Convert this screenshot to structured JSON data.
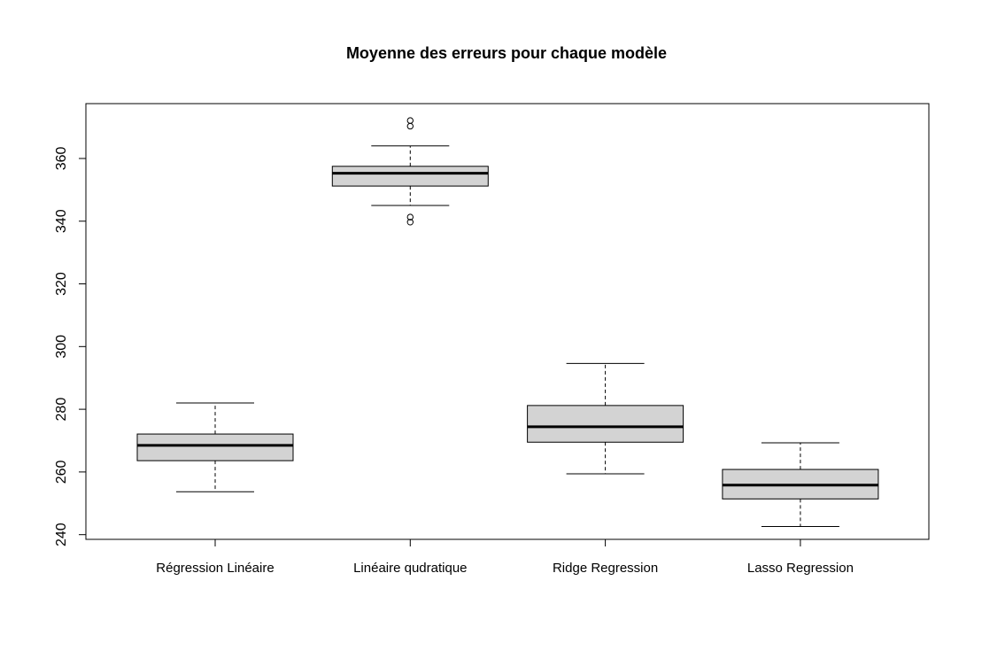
{
  "chart_data": {
    "type": "boxplot",
    "title": "Moyenne des erreurs pour chaque modèle",
    "xlabel": "",
    "ylabel": "",
    "ylim": [
      238.5,
      377.5
    ],
    "yticks": [
      240,
      260,
      280,
      300,
      320,
      340,
      360
    ],
    "grid": false,
    "legend": "none",
    "box_fill": "#d3d3d3",
    "line_color": "#000000",
    "categories": [
      "Régression Linéaire",
      "Linéaire qudratique",
      "Ridge Regression",
      "Lasso Regression"
    ],
    "series": [
      {
        "stats": {
          "min": 253.7,
          "q1": 263.6,
          "median": 268.5,
          "q3": 272.1,
          "max": 282.0
        },
        "outliers": []
      },
      {
        "stats": {
          "min": 345.0,
          "q1": 351.2,
          "median": 355.3,
          "q3": 357.5,
          "max": 364.0
        },
        "outliers": [
          372.1,
          370.3,
          341.3,
          339.7
        ]
      },
      {
        "stats": {
          "min": 259.4,
          "q1": 269.5,
          "median": 274.4,
          "q3": 281.2,
          "max": 294.6
        },
        "outliers": []
      },
      {
        "stats": {
          "min": 242.6,
          "q1": 251.4,
          "median": 255.8,
          "q3": 260.8,
          "max": 269.3
        },
        "outliers": []
      }
    ]
  }
}
